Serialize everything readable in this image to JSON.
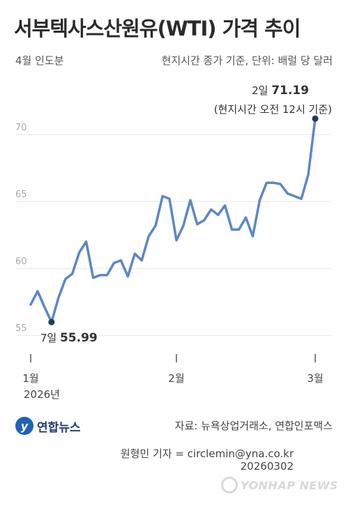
{
  "header": {
    "title": "서부텍사스산원유(WTI) 가격 추이",
    "subtitle_left": "4월 인도분",
    "subtitle_right": "현지시간 종가 기준, 단위: 배럴 당 달러"
  },
  "chart_data": {
    "type": "line",
    "title": "서부텍사스산원유(WTI) 가격 추이",
    "xlabel": "",
    "ylabel": "",
    "ylim": [
      53.5,
      72.5
    ],
    "yticks": [
      55,
      60,
      65,
      70
    ],
    "ytick_labels": [
      "55",
      "60",
      "65",
      "70"
    ],
    "x_tick_labels": [
      "1월",
      "2월",
      "3월"
    ],
    "year_label": "2026년",
    "grid": true,
    "series": [
      {
        "name": "",
        "color": "#5b87c7",
        "values": [
          57.3,
          58.3,
          57.1,
          55.99,
          57.8,
          59.2,
          59.6,
          61.2,
          62.0,
          59.3,
          59.5,
          59.5,
          60.4,
          60.6,
          59.4,
          61.1,
          60.6,
          62.4,
          63.2,
          65.4,
          65.2,
          62.1,
          63.2,
          65.1,
          63.3,
          63.6,
          64.4,
          64.0,
          64.7,
          62.9,
          62.9,
          63.8,
          62.4,
          65.1,
          66.4,
          66.4,
          66.3,
          65.6,
          65.4,
          65.2,
          67.0,
          71.19
        ]
      }
    ],
    "annotations": [
      {
        "label": "7일",
        "value": "55.99"
      },
      {
        "label": "2일",
        "value": "71.19",
        "note": "(현지시간 오전 12시 기준)"
      }
    ]
  },
  "footer": {
    "logo_text": "연합뉴스",
    "source": "자료: 뉴욕상업거래소, 연합인포맥스",
    "reporter": "원형민 기자 = circlemin@yna.co.kr",
    "date": "20260302",
    "watermark": "YONHAP NEWS"
  },
  "colors": {
    "line": "#5b87c7",
    "marker": "#1d3a5f",
    "grid": "#e4e4e4"
  }
}
